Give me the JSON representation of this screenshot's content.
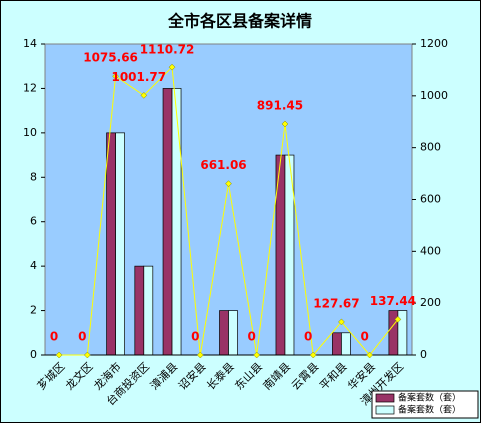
{
  "chart_data": {
    "type": "bar_line",
    "title": "全市各区县备案详情",
    "categories": [
      "芗城区",
      "龙文区",
      "龙海市",
      "台商投资区",
      "漳浦县",
      "诏安县",
      "长泰县",
      "东山县",
      "南靖县",
      "云霄县",
      "平和县",
      "华安县",
      "漳州开发区"
    ],
    "series": [
      {
        "name": "备案套数（套）",
        "color": "#993366",
        "values": [
          0,
          0,
          10,
          4,
          12,
          0,
          2,
          0,
          9,
          0,
          1,
          0,
          2
        ]
      },
      {
        "name": "备案套数（套）",
        "color": "#ccffff",
        "values": [
          0,
          0,
          10,
          4,
          12,
          0,
          2,
          0,
          9,
          0,
          1,
          0,
          2
        ]
      },
      {
        "type": "line",
        "axis": "y2",
        "color": "#ffff00",
        "label_color": "#ff0000",
        "values": [
          0,
          0,
          1075.66,
          1001.77,
          1110.72,
          0,
          661.06,
          0,
          891.45,
          0,
          127.67,
          0,
          137.44
        ]
      }
    ],
    "ylim": [
      0,
      14
    ],
    "yticks": [
      0,
      2,
      4,
      6,
      8,
      10,
      12,
      14
    ],
    "y2lim": [
      0,
      1200
    ],
    "y2ticks": [
      0,
      200,
      400,
      600,
      800,
      1000,
      1200
    ],
    "legend": "bottom-right"
  }
}
